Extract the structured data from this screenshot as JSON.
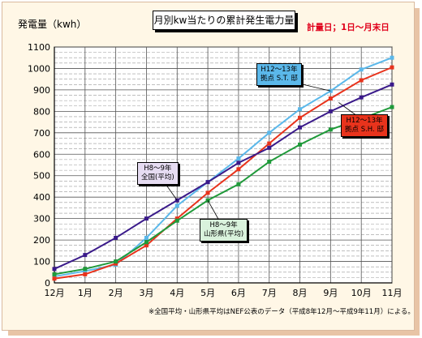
{
  "chart_data": {
    "type": "line",
    "title": "月別kw当たりの累計発生電力量",
    "ylabel": "発電量（kwh）",
    "note": "計量日；1日～月末日",
    "footnote": "※全国平均・山形県平均はNEF公表のデータ（平成8年12月～平成9年11月）による。",
    "categories": [
      "12月",
      "1月",
      "2月",
      "3月",
      "4月",
      "5月",
      "6月",
      "7月",
      "8月",
      "9月",
      "10月",
      "11月"
    ],
    "ylim": [
      0,
      1100
    ],
    "yticks": [
      0,
      100,
      200,
      300,
      400,
      500,
      600,
      700,
      800,
      900,
      1000,
      1100
    ],
    "grid": true,
    "series": [
      {
        "name": "H12～13年 拠点 S.T. 邸",
        "color": "#5bb8ea",
        "values": [
          30,
          55,
          85,
          210,
          360,
          470,
          580,
          700,
          810,
          895,
          995,
          1050
        ]
      },
      {
        "name": "H12～13年 拠点 S.H. 邸",
        "color": "#e8331c",
        "values": [
          20,
          40,
          90,
          175,
          300,
          420,
          530,
          650,
          770,
          860,
          945,
          1005
        ]
      },
      {
        "name": "H8～9年 全国(平均)",
        "color": "#3a1a8a",
        "values": [
          65,
          130,
          210,
          300,
          385,
          470,
          560,
          630,
          725,
          800,
          865,
          925
        ]
      },
      {
        "name": "H8～9年 山形県(平均)",
        "color": "#1f9a3a",
        "values": [
          40,
          65,
          100,
          190,
          290,
          385,
          460,
          565,
          645,
          715,
          765,
          820
        ]
      }
    ]
  },
  "callouts": {
    "st": {
      "line1": "H12～13年",
      "line2": "拠点  S.T. 邸"
    },
    "sh": {
      "line1": "H12～13年",
      "line2": "拠点  S.H. 邸"
    },
    "nat": {
      "line1": "H8～9年",
      "line2": "全国(平均)"
    },
    "yam": {
      "line1": "H8～9年",
      "line2": "山形県(平均)"
    }
  }
}
